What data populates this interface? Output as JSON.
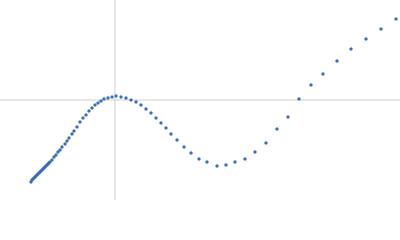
{
  "chart_data": {
    "type": "scatter",
    "color": "#3a6db5",
    "x": [
      -84,
      -83,
      -82,
      -81,
      -80,
      -79,
      -78,
      -77,
      -76,
      -75,
      -74,
      -73,
      -72,
      -71,
      -70,
      -69,
      -68,
      -67,
      -66,
      -65,
      -63,
      -61,
      -59,
      -57,
      -55,
      -53,
      -50,
      -48,
      -46,
      -43,
      -41,
      -38,
      -35,
      -32,
      -29,
      -26,
      -23,
      -20,
      -17,
      -14,
      -11,
      -7,
      -3,
      1,
      6,
      11,
      16,
      21,
      26,
      31,
      36,
      41,
      46,
      51,
      56,
      62,
      69,
      76,
      84,
      92,
      102,
      111,
      120,
      130,
      140,
      151,
      162,
      173,
      184,
      196,
      208,
      222,
      236,
      251,
      266,
      281
    ],
    "values": [
      -82,
      -80,
      -79,
      -78,
      -77,
      -76,
      -75,
      -74,
      -73,
      -72,
      -71,
      -70,
      -69,
      -68,
      -67,
      -66,
      -65,
      -64,
      -63,
      -62,
      -60,
      -57,
      -55,
      -52,
      -50,
      -47,
      -44,
      -41,
      -38,
      -34,
      -31,
      -27,
      -22,
      -18,
      -15,
      -11,
      -8,
      -5,
      -3,
      -1,
      1,
      2,
      3,
      4,
      3,
      2,
      0,
      -2,
      -5,
      -9,
      -13,
      -18,
      -23,
      -28,
      -34,
      -40,
      -47,
      -53,
      -59,
      -62,
      -66,
      -65,
      -62,
      -59,
      -52,
      -43,
      -29,
      -17,
      1,
      15,
      26,
      39,
      51,
      61,
      71,
      81
    ],
    "xlim": [
      -115,
      285
    ],
    "ylim": [
      -100,
      100
    ],
    "hlines": [
      0
    ],
    "vlines": [
      0
    ]
  }
}
